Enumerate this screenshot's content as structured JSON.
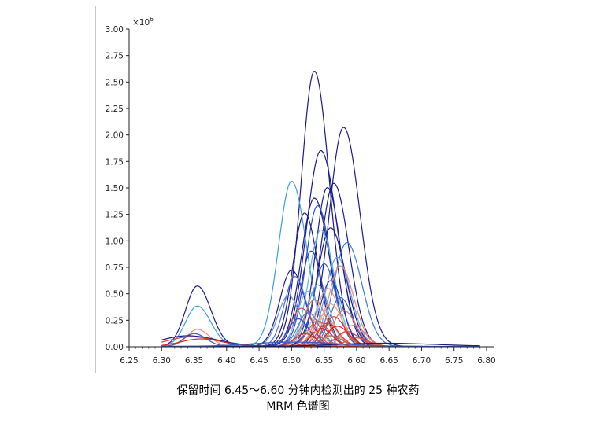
{
  "chart_data": {
    "type": "line",
    "title": "",
    "xlabel": "",
    "ylabel": "",
    "y_multiplier_label": "×10",
    "y_multiplier_exponent": "6",
    "xlim": [
      6.25,
      6.8
    ],
    "ylim": [
      0,
      3.0
    ],
    "x_ticks": [
      "6.25",
      "6.30",
      "6.35",
      "6.40",
      "6.45",
      "6.50",
      "6.55",
      "6.60",
      "6.65",
      "6.70",
      "6.75",
      "6.80"
    ],
    "y_ticks": [
      "0.00",
      "0.25",
      "0.50",
      "0.75",
      "1.00",
      "1.25",
      "1.50",
      "1.75",
      "2.00",
      "2.25",
      "2.50",
      "2.75",
      "3.00"
    ],
    "grid": false,
    "legend": "none",
    "series": [
      {
        "color": "#1a1a8c",
        "peak_x": 6.535,
        "peak_y": 2.6,
        "width": 0.02
      },
      {
        "color": "#1a1a8c",
        "peak_x": 6.58,
        "peak_y": 2.07,
        "width": 0.022
      },
      {
        "color": "#1a1a8c",
        "peak_x": 6.545,
        "peak_y": 1.85,
        "width": 0.022
      },
      {
        "color": "#3aa0d8",
        "peak_x": 6.5,
        "peak_y": 1.56,
        "width": 0.02
      },
      {
        "color": "#1a1a8c",
        "peak_x": 6.565,
        "peak_y": 1.54,
        "width": 0.02
      },
      {
        "color": "#1a1aa0",
        "peak_x": 6.555,
        "peak_y": 1.5,
        "width": 0.018
      },
      {
        "color": "#1a1a8c",
        "peak_x": 6.535,
        "peak_y": 1.4,
        "width": 0.02
      },
      {
        "color": "#2a4cc8",
        "peak_x": 6.54,
        "peak_y": 1.33,
        "width": 0.018
      },
      {
        "color": "#1a1a8c",
        "peak_x": 6.52,
        "peak_y": 1.26,
        "width": 0.018
      },
      {
        "color": "#1a1a8c",
        "peak_x": 6.56,
        "peak_y": 1.12,
        "width": 0.02
      },
      {
        "color": "#5ab4e6",
        "peak_x": 6.545,
        "peak_y": 1.1,
        "width": 0.018
      },
      {
        "color": "#3a7ad8",
        "peak_x": 6.585,
        "peak_y": 0.98,
        "width": 0.02
      },
      {
        "color": "#2a3cb0",
        "peak_x": 6.53,
        "peak_y": 0.9,
        "width": 0.016
      },
      {
        "color": "#6a9ce0",
        "peak_x": 6.57,
        "peak_y": 0.84,
        "width": 0.018
      },
      {
        "color": "#3a5ac8",
        "peak_x": 6.55,
        "peak_y": 0.78,
        "width": 0.016
      },
      {
        "color": "#e88a6a",
        "peak_x": 6.575,
        "peak_y": 0.76,
        "width": 0.018
      },
      {
        "color": "#1a1a8c",
        "peak_x": 6.5,
        "peak_y": 0.72,
        "width": 0.018
      },
      {
        "color": "#4a6ad8",
        "peak_x": 6.505,
        "peak_y": 0.66,
        "width": 0.016
      },
      {
        "color": "#2a3cb0",
        "peak_x": 6.56,
        "peak_y": 0.62,
        "width": 0.016
      },
      {
        "color": "#5a9ae0",
        "peak_x": 6.54,
        "peak_y": 0.58,
        "width": 0.016
      },
      {
        "color": "#e89a80",
        "peak_x": 6.555,
        "peak_y": 0.55,
        "width": 0.016
      },
      {
        "color": "#8aaee8",
        "peak_x": 6.525,
        "peak_y": 0.52,
        "width": 0.016
      },
      {
        "color": "#6a8ad8",
        "peak_x": 6.495,
        "peak_y": 0.48,
        "width": 0.016
      },
      {
        "color": "#3a6ad0",
        "peak_x": 6.575,
        "peak_y": 0.46,
        "width": 0.016
      },
      {
        "color": "#d86a5a",
        "peak_x": 6.535,
        "peak_y": 0.44,
        "width": 0.016
      },
      {
        "color": "#e8a890",
        "peak_x": 6.56,
        "peak_y": 0.4,
        "width": 0.016
      },
      {
        "color": "#a8c4f0",
        "peak_x": 6.545,
        "peak_y": 0.38,
        "width": 0.015
      },
      {
        "color": "#c84a40",
        "peak_x": 6.515,
        "peak_y": 0.36,
        "width": 0.016
      },
      {
        "color": "#e07060",
        "peak_x": 6.58,
        "peak_y": 0.34,
        "width": 0.016
      },
      {
        "color": "#5a7ad8",
        "peak_x": 6.525,
        "peak_y": 0.32,
        "width": 0.015
      },
      {
        "color": "#f0a080",
        "peak_x": 6.55,
        "peak_y": 0.3,
        "width": 0.015
      },
      {
        "color": "#d84030",
        "peak_x": 6.565,
        "peak_y": 0.28,
        "width": 0.015
      },
      {
        "color": "#2a4cc8",
        "peak_x": 6.51,
        "peak_y": 0.26,
        "width": 0.015
      },
      {
        "color": "#e85040",
        "peak_x": 6.54,
        "peak_y": 0.24,
        "width": 0.015
      },
      {
        "color": "#e03020",
        "peak_x": 6.555,
        "peak_y": 0.22,
        "width": 0.015
      },
      {
        "color": "#f08070",
        "peak_x": 6.595,
        "peak_y": 0.2,
        "width": 0.016
      },
      {
        "color": "#e02010",
        "peak_x": 6.57,
        "peak_y": 0.19,
        "width": 0.016
      },
      {
        "color": "#c82818",
        "peak_x": 6.545,
        "peak_y": 0.17,
        "width": 0.015
      },
      {
        "color": "#f0b090",
        "peak_x": 6.53,
        "peak_y": 0.15,
        "width": 0.015
      },
      {
        "color": "#e04030",
        "peak_x": 6.585,
        "peak_y": 0.14,
        "width": 0.016
      },
      {
        "color": "#d83020",
        "peak_x": 6.52,
        "peak_y": 0.12,
        "width": 0.015
      },
      {
        "color": "#a87060",
        "peak_x": 6.56,
        "peak_y": 0.1,
        "width": 0.015
      },
      {
        "color": "#e05040",
        "peak_x": 6.6,
        "peak_y": 0.08,
        "width": 0.016
      },
      {
        "color": "#1a1a8c",
        "peak_x": 6.355,
        "peak_y": 0.57,
        "width": 0.018
      },
      {
        "color": "#3aa0d8",
        "peak_x": 6.355,
        "peak_y": 0.38,
        "width": 0.018
      },
      {
        "color": "#f09070",
        "peak_x": 6.355,
        "peak_y": 0.16,
        "width": 0.016
      },
      {
        "color": "#3a5ac8",
        "peak_x": 6.35,
        "peak_y": 0.12,
        "width": 0.016
      },
      {
        "color": "#1a1a8c",
        "peak_x": 6.34,
        "peak_y": 0.1,
        "width": 0.04
      },
      {
        "color": "#e04030",
        "peak_x": 6.345,
        "peak_y": 0.09,
        "width": 0.035
      },
      {
        "color": "#c83030",
        "peak_x": 6.36,
        "peak_y": 0.07,
        "width": 0.03
      },
      {
        "color": "#1a1a8c",
        "peak_x": 6.64,
        "peak_y": 0.03,
        "width": 0.07
      },
      {
        "color": "#3a5ac8",
        "peak_x": 6.5,
        "peak_y": 0.04,
        "width": 0.06
      }
    ]
  },
  "caption": {
    "line1": "保留时间 6.45～6.60 分钟内检测出的 25 种农药",
    "line2": "MRM 色谱图"
  }
}
